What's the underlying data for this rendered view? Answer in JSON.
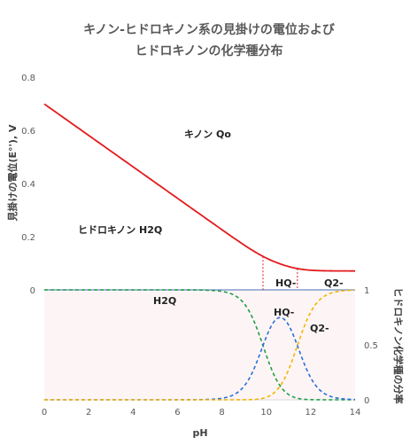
{
  "chart_data": {
    "title_line1": "キノン-ヒドロキノン系の見掛けの電位および",
    "title_line2": "ヒドロキノンの化学種分布",
    "xlabel": "pH",
    "ylabel_left": "見掛けの電位(E°'), V",
    "ylabel_right": "ヒドロキノン化学種の分率",
    "x_ticks": [
      "0",
      "2",
      "4",
      "6",
      "8",
      "10",
      "12",
      "14"
    ],
    "y_ticks_top": [
      "0",
      "0.2",
      "0.4",
      "0.6",
      "0.8"
    ],
    "y_ticks_bottom": [
      "0",
      "0.5",
      "1"
    ],
    "xlim": [
      0,
      14
    ],
    "ylim_potential": [
      0,
      0.8
    ],
    "ylim_fraction": [
      0,
      1
    ],
    "pKa1": 9.85,
    "pKa2": 11.4,
    "E0": 0.699,
    "slope": 0.0591,
    "annotations": {
      "quinone": "キノン Qo",
      "hydroquinone": "ヒドロキノン H2Q",
      "hq_top": "HQ-",
      "q2_top": "Q2-",
      "h2q_bottom": "H2Q",
      "hq_bottom": "HQ-",
      "q2_bottom": "Q2-"
    },
    "series": [
      {
        "type": "line",
        "color": "#e31a1c"
      },
      {
        "type": "dashed",
        "color": "#1f9e4a"
      },
      {
        "type": "dashed",
        "color": "#2a6fdb"
      },
      {
        "type": "dashed",
        "color": "#f4b400"
      }
    ]
  }
}
